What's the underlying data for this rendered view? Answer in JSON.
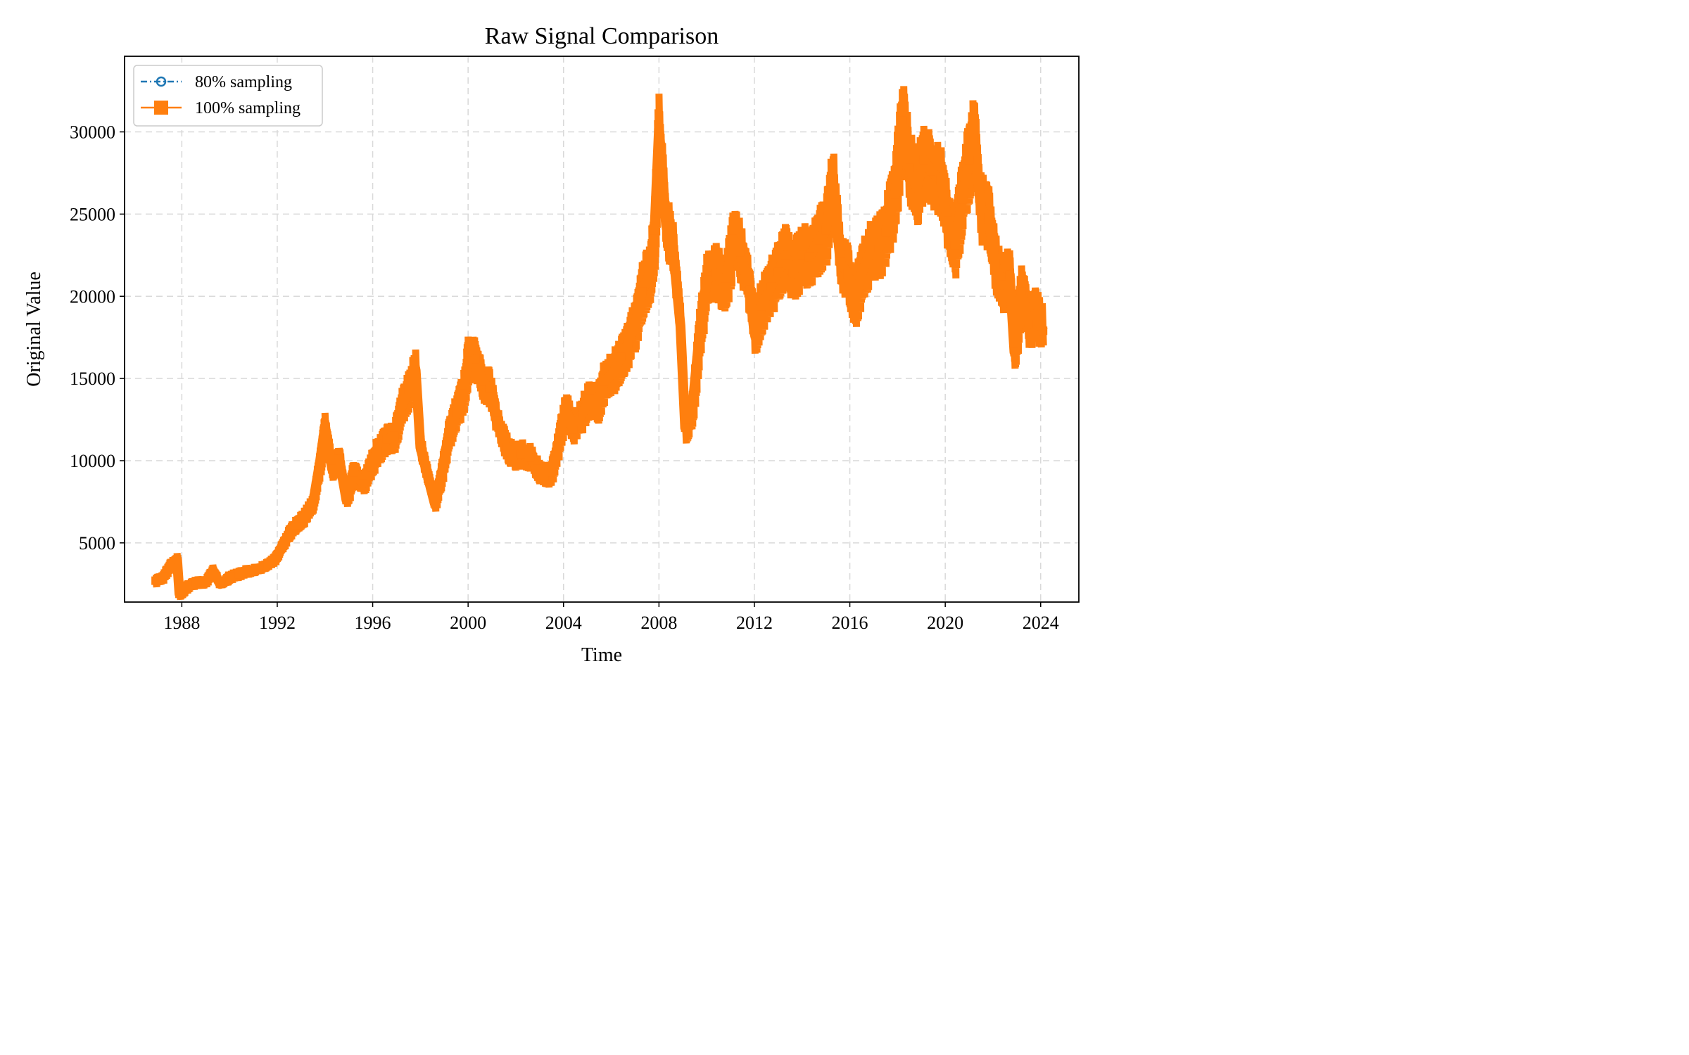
{
  "chart_data": {
    "type": "line",
    "title": "Raw Signal Comparison",
    "xlabel": "Time",
    "ylabel": "Original Value",
    "xlim": [
      1985.6,
      2025.6
    ],
    "ylim": [
      1400,
      34600
    ],
    "x_ticks": [
      1988,
      1992,
      1996,
      2000,
      2004,
      2008,
      2012,
      2016,
      2020,
      2024
    ],
    "x_tick_labels": [
      "1988",
      "1992",
      "1996",
      "2000",
      "2004",
      "2008",
      "2012",
      "2016",
      "2020",
      "2024"
    ],
    "y_ticks": [
      5000,
      10000,
      15000,
      20000,
      25000,
      30000
    ],
    "y_tick_labels": [
      "5000",
      "10000",
      "15000",
      "20000",
      "25000",
      "30000"
    ],
    "grid": true,
    "legend_position": "top-left",
    "series": [
      {
        "name": "80% sampling",
        "color": "#1f77b4",
        "marker": "circle-open",
        "linestyle": "dashed",
        "points": []
      },
      {
        "name": "100% sampling",
        "color": "#ff7f0e",
        "marker": "square",
        "linestyle": "solid",
        "points": [
          [
            1986.9,
            2700
          ],
          [
            1987.2,
            2900
          ],
          [
            1987.5,
            3600
          ],
          [
            1987.8,
            4000
          ],
          [
            1987.9,
            1900
          ],
          [
            1988.2,
            2300
          ],
          [
            1988.6,
            2600
          ],
          [
            1989.0,
            2600
          ],
          [
            1989.3,
            3300
          ],
          [
            1989.6,
            2500
          ],
          [
            1990.0,
            2900
          ],
          [
            1990.4,
            3100
          ],
          [
            1990.8,
            3300
          ],
          [
            1991.2,
            3400
          ],
          [
            1991.6,
            3700
          ],
          [
            1991.9,
            4000
          ],
          [
            1992.2,
            4800
          ],
          [
            1992.5,
            5600
          ],
          [
            1992.8,
            6100
          ],
          [
            1993.1,
            6500
          ],
          [
            1993.5,
            7400
          ],
          [
            1993.8,
            10000
          ],
          [
            1994.0,
            12100
          ],
          [
            1994.3,
            9500
          ],
          [
            1994.6,
            10100
          ],
          [
            1994.9,
            7600
          ],
          [
            1995.2,
            9300
          ],
          [
            1995.6,
            8600
          ],
          [
            1995.9,
            9600
          ],
          [
            1996.2,
            10600
          ],
          [
            1996.6,
            11300
          ],
          [
            1996.9,
            11500
          ],
          [
            1997.2,
            13200
          ],
          [
            1997.5,
            14300
          ],
          [
            1997.8,
            15500
          ],
          [
            1998.0,
            10800
          ],
          [
            1998.3,
            9100
          ],
          [
            1998.6,
            7400
          ],
          [
            1998.9,
            9300
          ],
          [
            1999.2,
            11700
          ],
          [
            1999.5,
            12900
          ],
          [
            1999.8,
            14100
          ],
          [
            2000.0,
            16100
          ],
          [
            2000.3,
            16200
          ],
          [
            2000.6,
            14800
          ],
          [
            2000.9,
            14400
          ],
          [
            2001.2,
            12400
          ],
          [
            2001.6,
            10800
          ],
          [
            2001.9,
            10300
          ],
          [
            2002.2,
            10400
          ],
          [
            2002.6,
            10200
          ],
          [
            2002.9,
            9500
          ],
          [
            2003.2,
            9000
          ],
          [
            2003.5,
            9300
          ],
          [
            2003.8,
            11200
          ],
          [
            2004.1,
            13200
          ],
          [
            2004.4,
            11900
          ],
          [
            2004.8,
            12900
          ],
          [
            2005.1,
            13800
          ],
          [
            2005.4,
            13300
          ],
          [
            2005.7,
            14800
          ],
          [
            2006.1,
            15400
          ],
          [
            2006.4,
            16300
          ],
          [
            2006.7,
            17100
          ],
          [
            2007.0,
            18300
          ],
          [
            2007.3,
            20300
          ],
          [
            2007.6,
            21400
          ],
          [
            2007.8,
            23500
          ],
          [
            2008.0,
            30200
          ],
          [
            2008.3,
            24300
          ],
          [
            2008.6,
            22700
          ],
          [
            2008.9,
            18200
          ],
          [
            2009.1,
            12000
          ],
          [
            2009.4,
            13200
          ],
          [
            2009.7,
            17700
          ],
          [
            2010.0,
            21000
          ],
          [
            2010.4,
            21400
          ],
          [
            2010.8,
            20600
          ],
          [
            2011.1,
            23500
          ],
          [
            2011.4,
            22700
          ],
          [
            2011.8,
            20400
          ],
          [
            2012.0,
            17800
          ],
          [
            2012.3,
            19400
          ],
          [
            2012.7,
            20600
          ],
          [
            2013.0,
            21500
          ],
          [
            2013.3,
            22500
          ],
          [
            2013.6,
            21400
          ],
          [
            2014.0,
            22500
          ],
          [
            2014.3,
            22400
          ],
          [
            2014.7,
            23400
          ],
          [
            2015.0,
            24000
          ],
          [
            2015.3,
            26900
          ],
          [
            2015.6,
            22100
          ],
          [
            2015.9,
            21400
          ],
          [
            2016.2,
            19600
          ],
          [
            2016.5,
            21400
          ],
          [
            2016.9,
            22900
          ],
          [
            2017.2,
            22900
          ],
          [
            2017.5,
            23900
          ],
          [
            2017.9,
            26200
          ],
          [
            2018.2,
            30700
          ],
          [
            2018.5,
            27800
          ],
          [
            2018.8,
            26600
          ],
          [
            2019.1,
            28300
          ],
          [
            2019.4,
            27600
          ],
          [
            2019.8,
            27100
          ],
          [
            2020.1,
            24600
          ],
          [
            2020.4,
            23100
          ],
          [
            2020.7,
            25900
          ],
          [
            2021.0,
            28300
          ],
          [
            2021.2,
            29600
          ],
          [
            2021.5,
            25300
          ],
          [
            2021.8,
            24800
          ],
          [
            2022.1,
            21900
          ],
          [
            2022.4,
            20700
          ],
          [
            2022.7,
            21300
          ],
          [
            2022.9,
            16600
          ],
          [
            2023.2,
            20300
          ],
          [
            2023.5,
            18300
          ],
          [
            2023.8,
            18900
          ],
          [
            2024.1,
            17900
          ]
        ]
      }
    ]
  }
}
